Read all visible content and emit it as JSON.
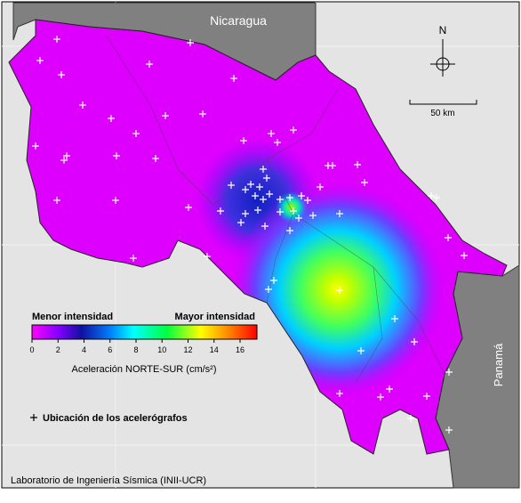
{
  "map": {
    "labels": {
      "nicaragua": "Nicaragua",
      "panama": "Panamá",
      "north": "N",
      "scale": "50 km"
    },
    "colorbar": {
      "low_label": "Menor intensidad",
      "high_label": "Mayor intensidad",
      "title": "Aceleración NORTE-SUR (cm/s²)",
      "range": [
        0,
        17.3
      ],
      "ticks": [
        0,
        2,
        4,
        6,
        8,
        10,
        12,
        14,
        16
      ]
    },
    "legend": "Ubicación de los acelerógrafos",
    "credit": "Laboratorio de Ingeniería Sísmica (INII-UCR)"
  }
}
